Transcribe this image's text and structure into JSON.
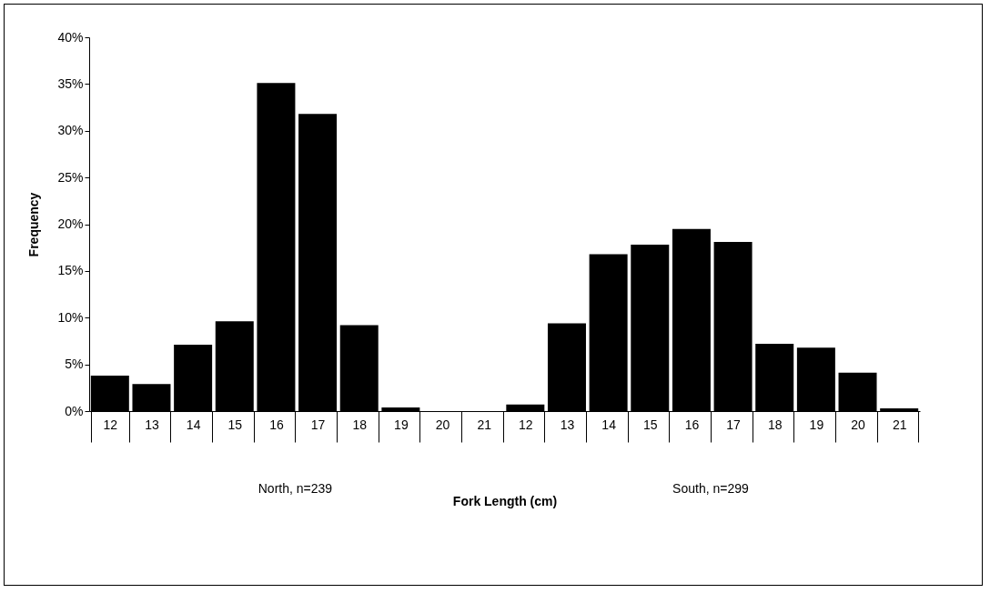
{
  "chart_data": {
    "type": "bar",
    "xlabel": "Fork Length (cm)",
    "ylabel": "Frequency",
    "categories": [
      "12",
      "13",
      "14",
      "15",
      "16",
      "17",
      "18",
      "19",
      "20",
      "21",
      "12",
      "13",
      "14",
      "15",
      "16",
      "17",
      "18",
      "19",
      "20",
      "21"
    ],
    "values": [
      3.8,
      2.9,
      7.1,
      9.6,
      35.1,
      31.8,
      9.2,
      0.4,
      0,
      0,
      0.7,
      9.4,
      16.8,
      17.8,
      19.5,
      18.1,
      7.2,
      6.8,
      4.1,
      0.3
    ],
    "color": "#000000",
    "ylim": [
      0,
      40
    ],
    "yticks": [
      {
        "value": 0,
        "label": "0%"
      },
      {
        "value": 5,
        "label": "5%"
      },
      {
        "value": 10,
        "label": "10%"
      },
      {
        "value": 15,
        "label": "15%"
      },
      {
        "value": 20,
        "label": "20%"
      },
      {
        "value": 25,
        "label": "25%"
      },
      {
        "value": 30,
        "label": "30%"
      },
      {
        "value": 35,
        "label": "35%"
      },
      {
        "value": 40,
        "label": "40%"
      }
    ],
    "annotations": [
      "North, n=239",
      "South, n=299"
    ],
    "grid": false
  }
}
